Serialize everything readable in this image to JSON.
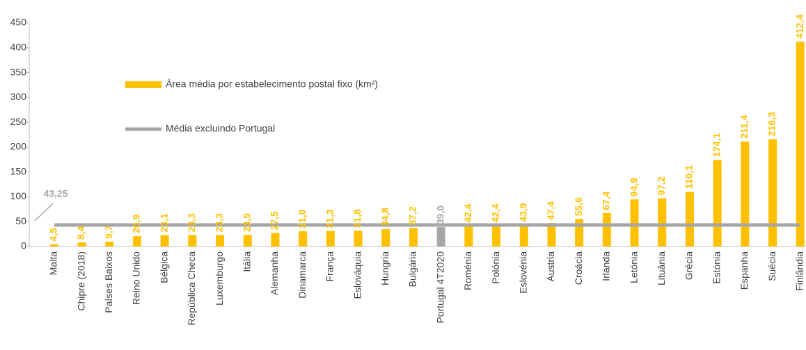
{
  "chart_data": {
    "type": "bar",
    "categories": [
      "Malta",
      "Chipre (2018)",
      "Países Baixos",
      "Reino Unido",
      "Bélgica",
      "República Checa",
      "Luxemburgo",
      "Itália",
      "Alemanha",
      "Dinamarca",
      "França",
      "Eslováquia",
      "Hungria",
      "Bulgária",
      "Portugal 4T2020",
      "Roménia",
      "Polónia",
      "Eslovénia",
      "Áustria",
      "Croácia",
      "Irlanda",
      "Letónia",
      "Lituânia",
      "Grécia",
      "Estónia",
      "Espanha",
      "Suécia",
      "Finlândia"
    ],
    "series": [
      {
        "name": "Área média por estabelecimento postal fixo (km²)",
        "color": "#ffc000",
        "values": [
          4.5,
          8.4,
          9.7,
          20.9,
          23.1,
          23.3,
          23.3,
          23.5,
          27.5,
          31.0,
          31.3,
          31.8,
          34.8,
          37.2,
          39.0,
          42.4,
          42.4,
          43.9,
          47.4,
          55.6,
          67.4,
          94.9,
          97.2,
          110.1,
          174.1,
          211.4,
          216.3,
          412.4
        ],
        "value_labels": [
          "4,5",
          "8,4",
          "9,7",
          "20,9",
          "23,1",
          "23,3",
          "23,3",
          "23,5",
          "27,5",
          "31,0",
          "31,3",
          "31,8",
          "34,8",
          "37,2",
          "39,0",
          "42,4",
          "42,4",
          "43,9",
          "47,4",
          "55,6",
          "67,4",
          "94,9",
          "97,2",
          "110,1",
          "174,1",
          "211,4",
          "216,3",
          "412,4"
        ],
        "colors": [
          "#ffc000",
          "#ffc000",
          "#ffc000",
          "#ffc000",
          "#ffc000",
          "#ffc000",
          "#ffc000",
          "#ffc000",
          "#ffc000",
          "#ffc000",
          "#ffc000",
          "#ffc000",
          "#ffc000",
          "#ffc000",
          "#a6a6a6",
          "#ffc000",
          "#ffc000",
          "#ffc000",
          "#ffc000",
          "#ffc000",
          "#ffc000",
          "#ffc000",
          "#ffc000",
          "#ffc000",
          "#ffc000",
          "#ffc000",
          "#ffc000",
          "#ffc000"
        ]
      }
    ],
    "reference_line": {
      "name": "Média excluindo Portugal",
      "value": 43.25,
      "value_label": "43,25",
      "color": "#a6a6a6"
    },
    "ylim": [
      0,
      450
    ],
    "yticks": [
      0,
      50,
      100,
      150,
      200,
      250,
      300,
      350,
      400,
      450
    ],
    "grid": false
  }
}
